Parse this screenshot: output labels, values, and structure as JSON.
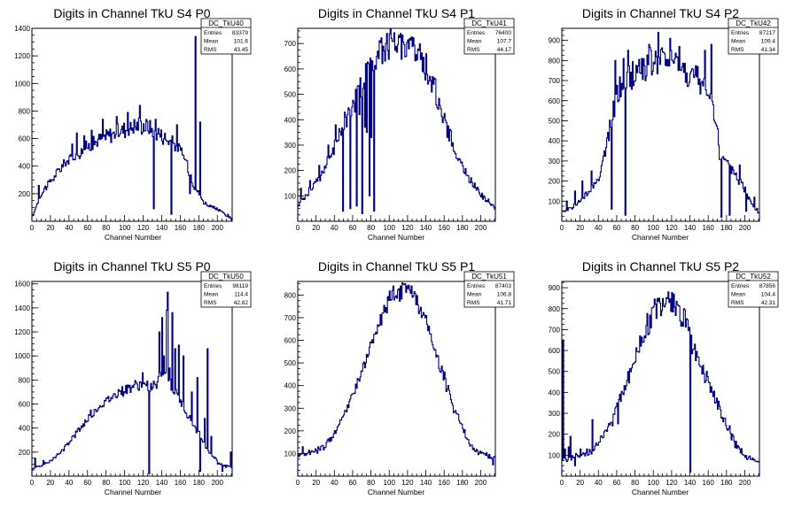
{
  "chart_data": [
    {
      "type": "histogram",
      "title": "Digits in Channel TkU S4 P0",
      "xlabel": "Channel Number",
      "ylabel": "",
      "xlim": [
        0,
        216
      ],
      "ylim": [
        0,
        1400
      ],
      "yticks": [
        200,
        400,
        600,
        800,
        1000,
        1200,
        1400
      ],
      "xticks": [
        0,
        20,
        40,
        60,
        80,
        100,
        120,
        140,
        160,
        180,
        200
      ],
      "stats": {
        "name": "DC_TkU40",
        "entries_label": "Entries",
        "entries": "83379",
        "mean_label": "Mean",
        "mean": "101.6",
        "rms_label": "RMS",
        "rms": "43.45"
      },
      "profile": [
        [
          0,
          20
        ],
        [
          2,
          60
        ],
        [
          8,
          170
        ],
        [
          15,
          250
        ],
        [
          25,
          330
        ],
        [
          35,
          420
        ],
        [
          45,
          470
        ],
        [
          55,
          520
        ],
        [
          65,
          560
        ],
        [
          75,
          600
        ],
        [
          85,
          630
        ],
        [
          95,
          660
        ],
        [
          105,
          680
        ],
        [
          115,
          700
        ],
        [
          125,
          690
        ],
        [
          135,
          650
        ],
        [
          145,
          600
        ],
        [
          155,
          560
        ],
        [
          165,
          460
        ],
        [
          175,
          260
        ],
        [
          185,
          140
        ],
        [
          195,
          100
        ],
        [
          205,
          70
        ],
        [
          213,
          30
        ],
        [
          216,
          10
        ]
      ],
      "spikes": [
        [
          7,
          260
        ],
        [
          13,
          240
        ],
        [
          21,
          300
        ],
        [
          27,
          380
        ],
        [
          43,
          560
        ],
        [
          48,
          640
        ],
        [
          56,
          620
        ],
        [
          64,
          660
        ],
        [
          76,
          740
        ],
        [
          91,
          760
        ],
        [
          103,
          790
        ],
        [
          116,
          840
        ],
        [
          131,
          90
        ],
        [
          133,
          740
        ],
        [
          150,
          50
        ],
        [
          156,
          700
        ],
        [
          170,
          200
        ],
        [
          176,
          1340
        ],
        [
          181,
          720
        ]
      ],
      "amplitude": 0.09
    },
    {
      "type": "histogram",
      "title": "Digits in Channel TkU S4 P1",
      "xlabel": "Channel Number",
      "ylabel": "",
      "xlim": [
        0,
        216
      ],
      "ylim": [
        0,
        760
      ],
      "yticks": [
        100,
        200,
        300,
        400,
        500,
        600,
        700
      ],
      "xticks": [
        0,
        20,
        40,
        60,
        80,
        100,
        120,
        140,
        160,
        180,
        200
      ],
      "stats": {
        "name": "DC_TkU41",
        "entries_label": "Entries",
        "entries": "76400",
        "mean_label": "Mean",
        "mean": "107.7",
        "rms_label": "RMS",
        "rms": "44.17"
      },
      "profile": [
        [
          0,
          60
        ],
        [
          5,
          90
        ],
        [
          15,
          130
        ],
        [
          25,
          180
        ],
        [
          35,
          250
        ],
        [
          45,
          330
        ],
        [
          55,
          420
        ],
        [
          65,
          500
        ],
        [
          75,
          580
        ],
        [
          85,
          640
        ],
        [
          95,
          690
        ],
        [
          105,
          710
        ],
        [
          115,
          700
        ],
        [
          125,
          690
        ],
        [
          135,
          640
        ],
        [
          145,
          560
        ],
        [
          155,
          460
        ],
        [
          165,
          350
        ],
        [
          175,
          250
        ],
        [
          185,
          180
        ],
        [
          195,
          130
        ],
        [
          205,
          90
        ],
        [
          213,
          60
        ],
        [
          216,
          50
        ]
      ],
      "spikes": [
        [
          3,
          130
        ],
        [
          13,
          160
        ],
        [
          23,
          220
        ],
        [
          33,
          300
        ],
        [
          41,
          380
        ],
        [
          49,
          40
        ],
        [
          51,
          430
        ],
        [
          54,
          420
        ],
        [
          57,
          50
        ],
        [
          59,
          450
        ],
        [
          62,
          430
        ],
        [
          64,
          60
        ],
        [
          67,
          420
        ],
        [
          70,
          30
        ],
        [
          73,
          370
        ],
        [
          75,
          350
        ],
        [
          78,
          100
        ],
        [
          80,
          330
        ],
        [
          83,
          40
        ],
        [
          86,
          650
        ],
        [
          96,
          700
        ],
        [
          102,
          720
        ],
        [
          112,
          740
        ],
        [
          122,
          720
        ],
        [
          140,
          660
        ],
        [
          150,
          560
        ],
        [
          178,
          230
        ],
        [
          203,
          100
        ]
      ],
      "amplitude": 0.08
    },
    {
      "type": "histogram",
      "title": "Digits in Channel TkU S4 P2",
      "xlabel": "Channel Number",
      "ylabel": "",
      "xlim": [
        0,
        216
      ],
      "ylim": [
        0,
        960
      ],
      "yticks": [
        100,
        200,
        300,
        400,
        500,
        600,
        700,
        800,
        900
      ],
      "xticks": [
        0,
        20,
        40,
        60,
        80,
        100,
        120,
        140,
        160,
        180,
        200
      ],
      "stats": {
        "name": "DC_TkU42",
        "entries_label": "Entries",
        "entries": "87217",
        "mean_label": "Mean",
        "mean": "109.4",
        "rms_label": "RMS",
        "rms": "41.34"
      },
      "profile": [
        [
          0,
          40
        ],
        [
          5,
          50
        ],
        [
          15,
          80
        ],
        [
          25,
          120
        ],
        [
          35,
          180
        ],
        [
          42,
          240
        ],
        [
          48,
          350
        ],
        [
          55,
          520
        ],
        [
          62,
          650
        ],
        [
          70,
          700
        ],
        [
          80,
          740
        ],
        [
          90,
          770
        ],
        [
          100,
          790
        ],
        [
          110,
          800
        ],
        [
          120,
          790
        ],
        [
          130,
          760
        ],
        [
          140,
          730
        ],
        [
          150,
          690
        ],
        [
          160,
          640
        ],
        [
          168,
          540
        ],
        [
          172,
          330
        ],
        [
          180,
          280
        ],
        [
          190,
          230
        ],
        [
          200,
          160
        ],
        [
          208,
          90
        ],
        [
          216,
          40
        ]
      ],
      "spikes": [
        [
          5,
          100
        ],
        [
          14,
          150
        ],
        [
          22,
          200
        ],
        [
          32,
          250
        ],
        [
          46,
          350
        ],
        [
          54,
          60
        ],
        [
          58,
          800
        ],
        [
          67,
          810
        ],
        [
          69,
          30
        ],
        [
          72,
          850
        ],
        [
          80,
          700
        ],
        [
          87,
          810
        ],
        [
          95,
          880
        ],
        [
          105,
          940
        ],
        [
          118,
          910
        ],
        [
          128,
          870
        ],
        [
          148,
          770
        ],
        [
          156,
          850
        ],
        [
          163,
          880
        ],
        [
          170,
          460
        ],
        [
          174,
          20
        ],
        [
          178,
          310
        ],
        [
          183,
          30
        ],
        [
          186,
          270
        ],
        [
          194,
          280
        ],
        [
          201,
          50
        ],
        [
          210,
          120
        ],
        [
          218,
          60
        ]
      ],
      "amplitude": 0.1
    },
    {
      "type": "histogram",
      "title": "Digits in Channel TkU S5 P0",
      "xlabel": "Channel Number",
      "ylabel": "",
      "xlim": [
        0,
        216
      ],
      "ylim": [
        0,
        1620
      ],
      "yticks": [
        200,
        400,
        600,
        800,
        1000,
        1200,
        1400,
        1600
      ],
      "xticks": [
        0,
        20,
        40,
        60,
        80,
        100,
        120,
        140,
        160,
        180,
        200
      ],
      "stats": {
        "name": "DC_TkU50",
        "entries_label": "Entries",
        "entries": "98119",
        "mean_label": "Mean",
        "mean": "114.4",
        "rms_label": "RMS",
        "rms": "42.82"
      },
      "profile": [
        [
          0,
          60
        ],
        [
          10,
          90
        ],
        [
          20,
          120
        ],
        [
          30,
          190
        ],
        [
          40,
          280
        ],
        [
          50,
          380
        ],
        [
          60,
          470
        ],
        [
          70,
          560
        ],
        [
          80,
          620
        ],
        [
          90,
          680
        ],
        [
          100,
          720
        ],
        [
          110,
          750
        ],
        [
          118,
          760
        ],
        [
          126,
          750
        ],
        [
          132,
          720
        ],
        [
          138,
          800
        ],
        [
          142,
          900
        ],
        [
          148,
          800
        ],
        [
          152,
          720
        ],
        [
          158,
          650
        ],
        [
          165,
          560
        ],
        [
          172,
          460
        ],
        [
          180,
          350
        ],
        [
          188,
          240
        ],
        [
          196,
          150
        ],
        [
          204,
          100
        ],
        [
          212,
          80
        ],
        [
          216,
          60
        ]
      ],
      "spikes": [
        [
          3,
          150
        ],
        [
          12,
          130
        ],
        [
          63,
          550
        ],
        [
          93,
          720
        ],
        [
          112,
          780
        ],
        [
          119,
          860
        ],
        [
          126,
          20
        ],
        [
          131,
          790
        ],
        [
          137,
          1200
        ],
        [
          140,
          1320
        ],
        [
          142,
          1000
        ],
        [
          145,
          1380
        ],
        [
          146,
          1530
        ],
        [
          148,
          900
        ],
        [
          151,
          1360
        ],
        [
          154,
          1060
        ],
        [
          158,
          1090
        ],
        [
          163,
          1000
        ],
        [
          169,
          490
        ],
        [
          172,
          700
        ],
        [
          178,
          820
        ],
        [
          181,
          40
        ],
        [
          186,
          480
        ],
        [
          189,
          1060
        ],
        [
          193,
          330
        ],
        [
          200,
          100
        ],
        [
          205,
          40
        ],
        [
          214,
          200
        ]
      ],
      "amplitude": 0.06
    },
    {
      "type": "histogram",
      "title": "Digits in Channel TkU S5 P1",
      "xlabel": "Channel Number",
      "ylabel": "",
      "xlim": [
        0,
        216
      ],
      "ylim": [
        0,
        860
      ],
      "yticks": [
        100,
        200,
        300,
        400,
        500,
        600,
        700,
        800
      ],
      "xticks": [
        0,
        20,
        40,
        60,
        80,
        100,
        120,
        140,
        160,
        180,
        200
      ],
      "stats": {
        "name": "DC_TkU51",
        "entries_label": "Entries",
        "entries": "87403",
        "mean_label": "Mean",
        "mean": "106.8",
        "rms_label": "RMS",
        "rms": "41.71"
      },
      "profile": [
        [
          0,
          90
        ],
        [
          10,
          100
        ],
        [
          20,
          110
        ],
        [
          30,
          130
        ],
        [
          40,
          190
        ],
        [
          50,
          270
        ],
        [
          60,
          360
        ],
        [
          70,
          460
        ],
        [
          80,
          570
        ],
        [
          90,
          680
        ],
        [
          100,
          770
        ],
        [
          110,
          810
        ],
        [
          118,
          820
        ],
        [
          126,
          800
        ],
        [
          134,
          750
        ],
        [
          142,
          660
        ],
        [
          150,
          550
        ],
        [
          160,
          430
        ],
        [
          170,
          320
        ],
        [
          180,
          210
        ],
        [
          190,
          130
        ],
        [
          200,
          100
        ],
        [
          208,
          90
        ],
        [
          216,
          80
        ]
      ],
      "spikes": [
        [
          5,
          130
        ],
        [
          22,
          130
        ],
        [
          74,
          500
        ],
        [
          92,
          720
        ],
        [
          104,
          840
        ],
        [
          112,
          840
        ],
        [
          117,
          850
        ],
        [
          124,
          840
        ],
        [
          147,
          580
        ],
        [
          160,
          460
        ],
        [
          170,
          280
        ],
        [
          183,
          170
        ],
        [
          199,
          110
        ],
        [
          213,
          50
        ]
      ],
      "amplitude": 0.05
    },
    {
      "type": "histogram",
      "title": "Digits in Channel TkU S5 P2",
      "xlabel": "Channel Number",
      "ylabel": "",
      "xlim": [
        0,
        216
      ],
      "ylim": [
        0,
        930
      ],
      "yticks": [
        100,
        200,
        300,
        400,
        500,
        600,
        700,
        800,
        900
      ],
      "xticks": [
        0,
        20,
        40,
        60,
        80,
        100,
        120,
        140,
        160,
        180,
        200
      ],
      "stats": {
        "name": "DC_TkU52",
        "entries_label": "Entries",
        "entries": "87856",
        "mean_label": "Mean",
        "mean": "104.4",
        "rms_label": "RMS",
        "rms": "42.31"
      },
      "profile": [
        [
          0,
          90
        ],
        [
          10,
          90
        ],
        [
          20,
          100
        ],
        [
          30,
          110
        ],
        [
          40,
          160
        ],
        [
          50,
          230
        ],
        [
          60,
          330
        ],
        [
          70,
          440
        ],
        [
          80,
          560
        ],
        [
          90,
          680
        ],
        [
          100,
          780
        ],
        [
          110,
          840
        ],
        [
          118,
          850
        ],
        [
          126,
          820
        ],
        [
          134,
          740
        ],
        [
          142,
          640
        ],
        [
          150,
          540
        ],
        [
          160,
          450
        ],
        [
          170,
          350
        ],
        [
          180,
          240
        ],
        [
          190,
          150
        ],
        [
          200,
          100
        ],
        [
          208,
          80
        ],
        [
          216,
          60
        ]
      ],
      "spikes": [
        [
          1,
          650
        ],
        [
          3,
          130
        ],
        [
          5,
          70
        ],
        [
          7,
          140
        ],
        [
          9,
          190
        ],
        [
          14,
          50
        ],
        [
          20,
          130
        ],
        [
          27,
          130
        ],
        [
          33,
          270
        ],
        [
          38,
          150
        ],
        [
          55,
          240
        ],
        [
          61,
          250
        ],
        [
          72,
          500
        ],
        [
          92,
          720
        ],
        [
          106,
          850
        ],
        [
          116,
          880
        ],
        [
          126,
          820
        ],
        [
          133,
          800
        ],
        [
          140,
          20
        ],
        [
          145,
          630
        ],
        [
          158,
          500
        ],
        [
          170,
          320
        ],
        [
          183,
          240
        ],
        [
          195,
          110
        ],
        [
          210,
          80
        ]
      ],
      "amplitude": 0.08
    }
  ]
}
